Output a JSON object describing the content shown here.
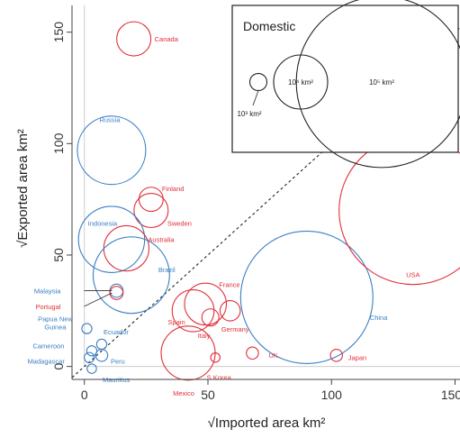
{
  "chart_data": {
    "type": "scatter",
    "xlabel": "√Imported area km²",
    "ylabel": "√Exported area km²",
    "xlim": [
      -5,
      152
    ],
    "ylim": [
      -5,
      162
    ],
    "x_ticks": [
      0,
      50,
      100,
      150
    ],
    "y_ticks": [
      0,
      50,
      100,
      150
    ],
    "grid": false,
    "reference_line": "y = x (dashed)",
    "colors": {
      "red_group": "#e0303a",
      "blue_group": "#3a7fc4",
      "axes": "#444444",
      "legend": "#222222"
    },
    "legend": {
      "title": "Domestic",
      "placement": "top-right",
      "entries": [
        {
          "label": "10³ km²",
          "domestic_area_km2": 1000
        },
        {
          "label": "10⁴ km²",
          "domestic_area_km2": 10000
        },
        {
          "label": "10⁵ km²",
          "domestic_area_km2": 100000
        }
      ]
    },
    "points": [
      {
        "label": "Canada",
        "x": 20,
        "y": 147,
        "domestic_area_km2": 4000,
        "color": "red"
      },
      {
        "label": "Russia",
        "x": 11,
        "y": 97,
        "domestic_area_km2": 16000,
        "color": "blue"
      },
      {
        "label": "Finland",
        "x": 27,
        "y": 75,
        "domestic_area_km2": 2000,
        "color": "red"
      },
      {
        "label": "Sweden",
        "x": 27,
        "y": 70,
        "domestic_area_km2": 4000,
        "color": "red"
      },
      {
        "label": "Indonesia",
        "x": 11,
        "y": 57,
        "domestic_area_km2": 15000,
        "color": "blue"
      },
      {
        "label": "Australia",
        "x": 17,
        "y": 53,
        "domestic_area_km2": 7000,
        "color": "red"
      },
      {
        "label": "Brazil",
        "x": 19,
        "y": 41,
        "domestic_area_km2": 20000,
        "color": "blue"
      },
      {
        "label": "Malaysia",
        "x": 13,
        "y": 34,
        "domestic_area_km2": 600,
        "color": "blue"
      },
      {
        "label": "Portugal",
        "x": 13,
        "y": 33,
        "domestic_area_km2": 600,
        "color": "red"
      },
      {
        "label": "France",
        "x": 49,
        "y": 28,
        "domestic_area_km2": 6000,
        "color": "red"
      },
      {
        "label": "Spain",
        "x": 44,
        "y": 25,
        "domestic_area_km2": 6000,
        "color": "red"
      },
      {
        "label": "Germany",
        "x": 59,
        "y": 25,
        "domestic_area_km2": 1400,
        "color": "red"
      },
      {
        "label": "Italy",
        "x": 51,
        "y": 22,
        "domestic_area_km2": 1000,
        "color": "red"
      },
      {
        "label": "China",
        "x": 90,
        "y": 31,
        "domestic_area_km2": 60000,
        "color": "blue"
      },
      {
        "label": "USA",
        "x": 133,
        "y": 70,
        "domestic_area_km2": 75000,
        "color": "red"
      },
      {
        "label": "Papua New Guinea",
        "x": 1,
        "y": 17,
        "domestic_area_km2": 350,
        "color": "blue"
      },
      {
        "label": "Ecuador",
        "x": 7,
        "y": 10,
        "domestic_area_km2": 350,
        "color": "blue"
      },
      {
        "label": "Cameroon",
        "x": 3,
        "y": 7,
        "domestic_area_km2": 350,
        "color": "blue"
      },
      {
        "label": "Madagascar",
        "x": 2,
        "y": 4,
        "domestic_area_km2": 350,
        "color": "blue"
      },
      {
        "label": "Peru",
        "x": 7,
        "y": 5,
        "domestic_area_km2": 500,
        "color": "blue"
      },
      {
        "label": "Mauritius",
        "x": 3,
        "y": -1,
        "domestic_area_km2": 300,
        "color": "blue"
      },
      {
        "label": "Mexico",
        "x": 42,
        "y": 6,
        "domestic_area_km2": 10000,
        "color": "red"
      },
      {
        "label": "S Korea",
        "x": 53,
        "y": 4,
        "domestic_area_km2": 300,
        "color": "red"
      },
      {
        "label": "UK",
        "x": 68,
        "y": 6,
        "domestic_area_km2": 500,
        "color": "red"
      },
      {
        "label": "Japan",
        "x": 102,
        "y": 5,
        "domestic_area_km2": 500,
        "color": "red"
      }
    ]
  }
}
